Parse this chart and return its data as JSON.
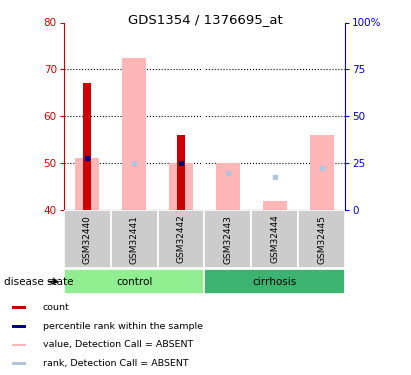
{
  "title": "GDS1354 / 1376695_at",
  "samples": [
    "GSM32440",
    "GSM32441",
    "GSM32442",
    "GSM32443",
    "GSM32444",
    "GSM32445"
  ],
  "ymin": 40,
  "ymax": 80,
  "yticks_left": [
    40,
    50,
    60,
    70,
    80
  ],
  "yticks_right": [
    0,
    25,
    50,
    75,
    100
  ],
  "ytick_right_labels": [
    "0",
    "25",
    "50",
    "75",
    "100%"
  ],
  "left_axis_color": "#cc0000",
  "right_axis_color": "#0000cc",
  "red_bars": [
    67,
    null,
    56,
    null,
    null,
    null
  ],
  "blue_squares_y": [
    51,
    null,
    50,
    null,
    null,
    null
  ],
  "pink_bars_top": [
    51,
    72.5,
    50,
    50,
    42,
    56
  ],
  "light_blue_squares_y": [
    null,
    50,
    null,
    48,
    47,
    49
  ],
  "control_color": "#90ee90",
  "cirrhosis_color": "#3cb371",
  "sample_bg_color": "#cccccc",
  "disease_state_label": "disease state"
}
